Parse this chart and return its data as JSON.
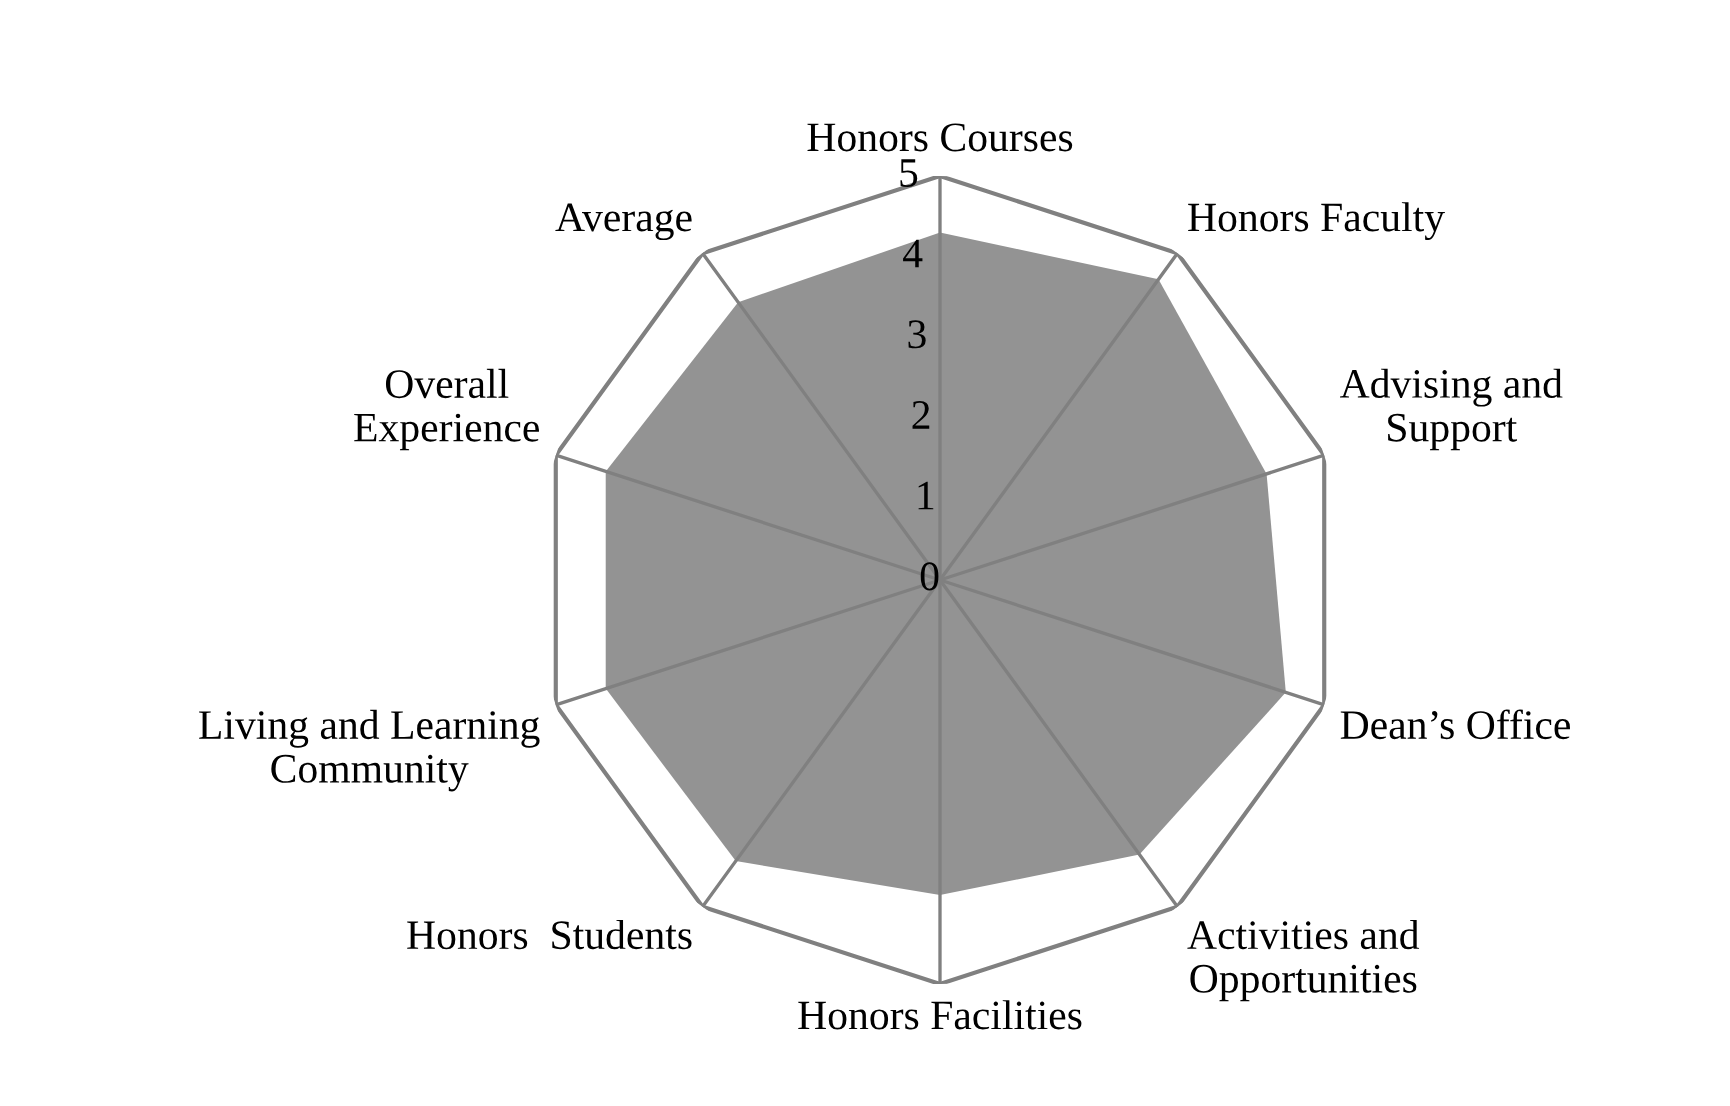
{
  "chart_data": {
    "type": "radar",
    "categories": [
      "Honors Courses",
      "Honors Faculty",
      "Advising and\nSupport",
      "Dean’s Office",
      "Activities and\nOpportunities",
      "Honors Facilities",
      "Honors  Students",
      "Living and Learning\nCommunity",
      "Overall\nExperience",
      "Average"
    ],
    "series": [
      {
        "color": "#939393",
        "values": [
          4.3,
          4.6,
          4.25,
          4.5,
          4.2,
          3.9,
          4.3,
          4.35,
          4.35,
          4.25
        ]
      }
    ],
    "ylim": [
      0,
      5
    ],
    "yticks": [
      0,
      1,
      2,
      3,
      4,
      5
    ],
    "grid": "x",
    "legend": false
  }
}
